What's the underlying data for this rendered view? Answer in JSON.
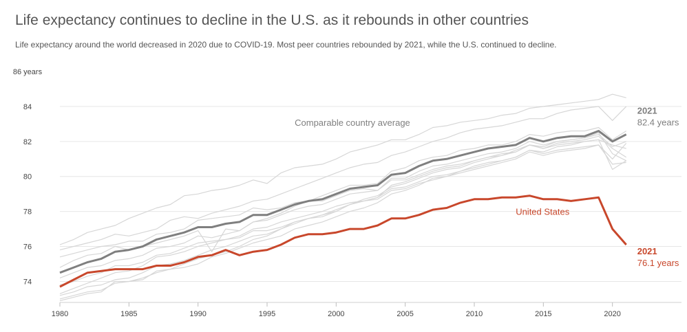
{
  "title": "Life expectancy continues to decline in the U.S. as it rebounds in other countries",
  "subtitle": "Life expectancy around the world decreased in 2020 due to COVID-19. Most peer countries rebounded by 2021, while the U.S. continued to decline.",
  "colors": {
    "us": "#c8472b",
    "avg": "#7f7f7f",
    "peer": "#d6d6d6",
    "grid": "#e6e6e6"
  },
  "chart_data": {
    "type": "line",
    "title": "Life expectancy continues to decline in the U.S. as it rebounds in other countries",
    "xlabel": "",
    "ylabel": "",
    "xlim": [
      1980,
      2025
    ],
    "ylim": [
      72.8,
      86
    ],
    "xticks": [
      1980,
      1985,
      1990,
      1995,
      2000,
      2005,
      2010,
      2015,
      2020
    ],
    "yticks": [
      {
        "value": 74,
        "label": "74"
      },
      {
        "value": 76,
        "label": "76"
      },
      {
        "value": 78,
        "label": "78"
      },
      {
        "value": 80,
        "label": "80"
      },
      {
        "value": 82,
        "label": "82"
      },
      {
        "value": 84,
        "label": "84"
      },
      {
        "value": 86,
        "label": "86 years"
      }
    ],
    "x": [
      1980,
      1981,
      1982,
      1983,
      1984,
      1985,
      1986,
      1987,
      1988,
      1989,
      1990,
      1991,
      1992,
      1993,
      1994,
      1995,
      1996,
      1997,
      1998,
      1999,
      2000,
      2001,
      2002,
      2003,
      2004,
      2005,
      2006,
      2007,
      2008,
      2009,
      2010,
      2011,
      2012,
      2013,
      2014,
      2015,
      2016,
      2017,
      2018,
      2019,
      2020,
      2021
    ],
    "series": [
      {
        "name": "United States",
        "role": "highlight",
        "values": [
          73.7,
          74.1,
          74.5,
          74.6,
          74.7,
          74.7,
          74.7,
          74.9,
          74.9,
          75.1,
          75.4,
          75.5,
          75.8,
          75.5,
          75.7,
          75.8,
          76.1,
          76.5,
          76.7,
          76.7,
          76.8,
          77.0,
          77.0,
          77.2,
          77.6,
          77.6,
          77.8,
          78.1,
          78.2,
          78.5,
          78.7,
          78.7,
          78.8,
          78.8,
          78.9,
          78.7,
          78.7,
          78.6,
          78.7,
          78.8,
          77.0,
          76.1
        ]
      },
      {
        "name": "Comparable country average",
        "role": "average",
        "values": [
          74.5,
          74.8,
          75.1,
          75.3,
          75.7,
          75.8,
          76.0,
          76.4,
          76.6,
          76.8,
          77.1,
          77.1,
          77.3,
          77.4,
          77.8,
          77.8,
          78.1,
          78.4,
          78.6,
          78.7,
          79.0,
          79.3,
          79.4,
          79.5,
          80.1,
          80.2,
          80.6,
          80.9,
          81.0,
          81.2,
          81.4,
          81.6,
          81.7,
          81.8,
          82.2,
          82.0,
          82.2,
          82.3,
          82.3,
          82.6,
          82.0,
          82.4
        ]
      },
      {
        "role": "peer",
        "values": [
          76.1,
          76.4,
          76.8,
          77.0,
          77.2,
          77.6,
          77.9,
          78.2,
          78.4,
          78.9,
          79.0,
          79.2,
          79.3,
          79.5,
          79.8,
          79.6,
          80.2,
          80.5,
          80.6,
          80.7,
          81.0,
          81.4,
          81.6,
          81.8,
          82.1,
          82.1,
          82.4,
          82.8,
          82.9,
          83.1,
          83.2,
          83.3,
          83.5,
          83.6,
          83.9,
          84.0,
          84.1,
          84.2,
          84.3,
          84.4,
          84.7,
          84.5
        ]
      },
      {
        "role": "peer",
        "values": [
          75.8,
          76.0,
          76.2,
          76.4,
          76.7,
          76.6,
          76.8,
          77.0,
          77.5,
          77.7,
          77.6,
          77.9,
          78.1,
          78.3,
          78.6,
          78.7,
          79.0,
          79.3,
          79.6,
          79.9,
          80.2,
          80.5,
          80.7,
          80.8,
          81.2,
          81.4,
          81.7,
          82.0,
          82.2,
          82.5,
          82.7,
          82.8,
          82.9,
          83.1,
          83.3,
          83.3,
          83.6,
          83.8,
          83.9,
          84.0,
          83.2,
          84.0
        ]
      },
      {
        "role": "peer",
        "values": [
          75.4,
          75.6,
          75.8,
          76.0,
          76.1,
          76.3,
          76.3,
          76.7,
          76.8,
          77.0,
          77.5,
          77.6,
          77.7,
          77.8,
          78.2,
          78.1,
          78.2,
          78.5,
          78.6,
          78.9,
          79.2,
          79.5,
          79.5,
          79.6,
          80.3,
          80.5,
          80.9,
          81.1,
          81.2,
          81.5,
          81.6,
          81.8,
          81.8,
          82.0,
          82.4,
          82.3,
          82.5,
          82.6,
          82.6,
          82.8,
          82.1,
          82.6
        ]
      },
      {
        "role": "peer",
        "values": [
          74.8,
          75.2,
          75.5,
          75.6,
          76.0,
          75.8,
          76.0,
          76.2,
          76.4,
          76.6,
          76.9,
          75.7,
          77.0,
          76.9,
          77.4,
          77.6,
          77.9,
          78.3,
          78.6,
          78.6,
          78.9,
          79.2,
          79.3,
          79.2,
          79.9,
          79.9,
          80.3,
          80.6,
          80.7,
          80.9,
          81.1,
          81.3,
          81.4,
          81.6,
          82.0,
          81.8,
          82.0,
          82.1,
          82.2,
          82.4,
          81.7,
          82.0
        ]
      },
      {
        "role": "peer",
        "values": [
          74.2,
          74.5,
          74.8,
          74.9,
          75.2,
          75.3,
          75.5,
          75.9,
          76.0,
          76.2,
          76.6,
          76.5,
          76.7,
          76.9,
          77.4,
          77.5,
          77.8,
          78.1,
          78.3,
          78.4,
          78.7,
          79.0,
          79.1,
          79.2,
          79.8,
          79.8,
          80.1,
          80.4,
          80.6,
          80.7,
          80.9,
          81.1,
          81.3,
          81.4,
          81.8,
          81.6,
          81.8,
          81.9,
          82.0,
          82.1,
          81.8,
          81.6
        ]
      },
      {
        "role": "peer",
        "values": [
          73.8,
          74.0,
          74.3,
          74.5,
          74.9,
          74.9,
          75.1,
          75.5,
          75.6,
          75.9,
          76.2,
          76.3,
          76.4,
          76.6,
          77.0,
          77.1,
          77.4,
          77.6,
          77.8,
          78.0,
          78.3,
          78.5,
          78.6,
          78.8,
          79.3,
          79.4,
          79.7,
          80.0,
          80.1,
          80.3,
          80.6,
          80.8,
          80.9,
          81.1,
          81.5,
          81.3,
          81.5,
          81.6,
          81.7,
          81.8,
          81.0,
          81.9
        ]
      },
      {
        "role": "peer",
        "values": [
          73.3,
          73.6,
          73.9,
          74.2,
          74.5,
          74.6,
          74.9,
          75.4,
          75.5,
          75.7,
          76.0,
          76.2,
          76.4,
          76.5,
          76.9,
          76.9,
          77.1,
          77.4,
          77.6,
          77.8,
          78.1,
          78.4,
          78.6,
          78.7,
          79.2,
          79.3,
          79.6,
          79.8,
          80.0,
          80.2,
          80.4,
          80.6,
          80.8,
          81.0,
          81.4,
          81.2,
          81.4,
          81.5,
          81.6,
          81.8,
          80.7,
          80.8
        ]
      },
      {
        "role": "peer",
        "values": [
          73.2,
          73.4,
          73.7,
          73.8,
          74.1,
          74.2,
          74.5,
          74.9,
          75.0,
          75.2,
          75.5,
          75.8,
          76.0,
          76.3,
          76.6,
          76.7,
          77.0,
          77.4,
          77.6,
          77.8,
          78.0,
          78.4,
          78.7,
          78.9,
          79.4,
          79.6,
          79.9,
          80.2,
          80.4,
          80.5,
          80.8,
          81.0,
          81.2,
          81.5,
          81.8,
          81.6,
          81.9,
          82.0,
          82.1,
          82.3,
          81.6,
          81.1
        ]
      },
      {
        "role": "peer",
        "values": [
          72.9,
          73.1,
          73.3,
          73.4,
          74.0,
          74.0,
          74.2,
          74.5,
          74.7,
          75.0,
          75.3,
          75.5,
          75.7,
          76.0,
          76.4,
          76.6,
          77.0,
          77.3,
          77.6,
          77.7,
          78.0,
          78.4,
          78.6,
          78.8,
          79.5,
          79.7,
          80.0,
          80.3,
          80.5,
          80.6,
          80.9,
          81.1,
          81.2,
          81.4,
          81.8,
          81.7,
          82.0,
          82.1,
          82.2,
          82.5,
          81.3,
          80.9
        ]
      },
      {
        "role": "peer",
        "values": [
          73.0,
          73.2,
          73.4,
          73.5,
          73.9,
          74.0,
          74.1,
          74.6,
          74.7,
          74.8,
          75.0,
          75.4,
          75.6,
          75.9,
          76.2,
          76.4,
          76.6,
          77.0,
          77.2,
          77.4,
          77.7,
          78.0,
          78.2,
          78.5,
          79.0,
          79.2,
          79.5,
          79.9,
          80.0,
          80.3,
          80.5,
          80.7,
          80.9,
          81.1,
          81.5,
          81.4,
          81.7,
          81.8,
          82.0,
          82.1,
          80.4,
          80.9
        ]
      }
    ],
    "annotations": [
      {
        "text": "Comparable country average",
        "series": "Comparable country average",
        "x": 1997,
        "y": 82.9
      },
      {
        "text": "United States",
        "series": "United States",
        "x": 2013,
        "y": 77.8
      }
    ],
    "end_labels": [
      {
        "series": "Comparable country average",
        "year": "2021",
        "value": "82.4 years"
      },
      {
        "series": "United States",
        "year": "2021",
        "value": "76.1 years"
      }
    ],
    "grid": true,
    "legend": "none"
  }
}
